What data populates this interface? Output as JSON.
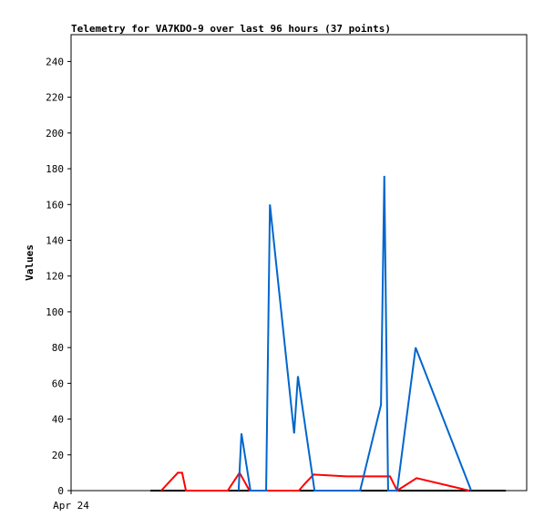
{
  "chart_data": {
    "type": "line",
    "title": "Telemetry for VA7KDO-9 over last 96 hours (37 points)",
    "y_label": "Values",
    "xlim": [
      0,
      96
    ],
    "xticks": [
      {
        "value": 0,
        "label": "Apr 24"
      }
    ],
    "ylim": [
      0,
      255
    ],
    "yticks": [
      0,
      20,
      40,
      60,
      80,
      100,
      120,
      140,
      160,
      180,
      200,
      220,
      240
    ],
    "grid": false,
    "series": [
      {
        "color": "#000000",
        "x": [
          16.7,
          91.6
        ],
        "values": [
          0,
          0
        ]
      },
      {
        "color": "#ff0000",
        "x": [
          19.0,
          22.5,
          23.4,
          24.2,
          33.0,
          35.5,
          37.6,
          48.0,
          49.3,
          51.1,
          58.0,
          67.2,
          68.7,
          72.8,
          83.9
        ],
        "values": [
          0,
          10,
          10,
          0,
          0,
          10,
          0,
          0,
          4,
          9,
          8,
          8,
          0,
          7,
          0
        ]
      },
      {
        "color": "#0066cc",
        "x": [
          35.3,
          35.9,
          37.8,
          41.1,
          41.9,
          47.0,
          47.8,
          51.3,
          60.9,
          65.3,
          66.0,
          66.8,
          68.7,
          72.6,
          84.3
        ],
        "values": [
          0,
          32,
          0,
          0,
          160,
          32,
          64,
          0,
          0,
          48,
          176,
          0,
          0,
          80,
          0
        ]
      }
    ]
  }
}
